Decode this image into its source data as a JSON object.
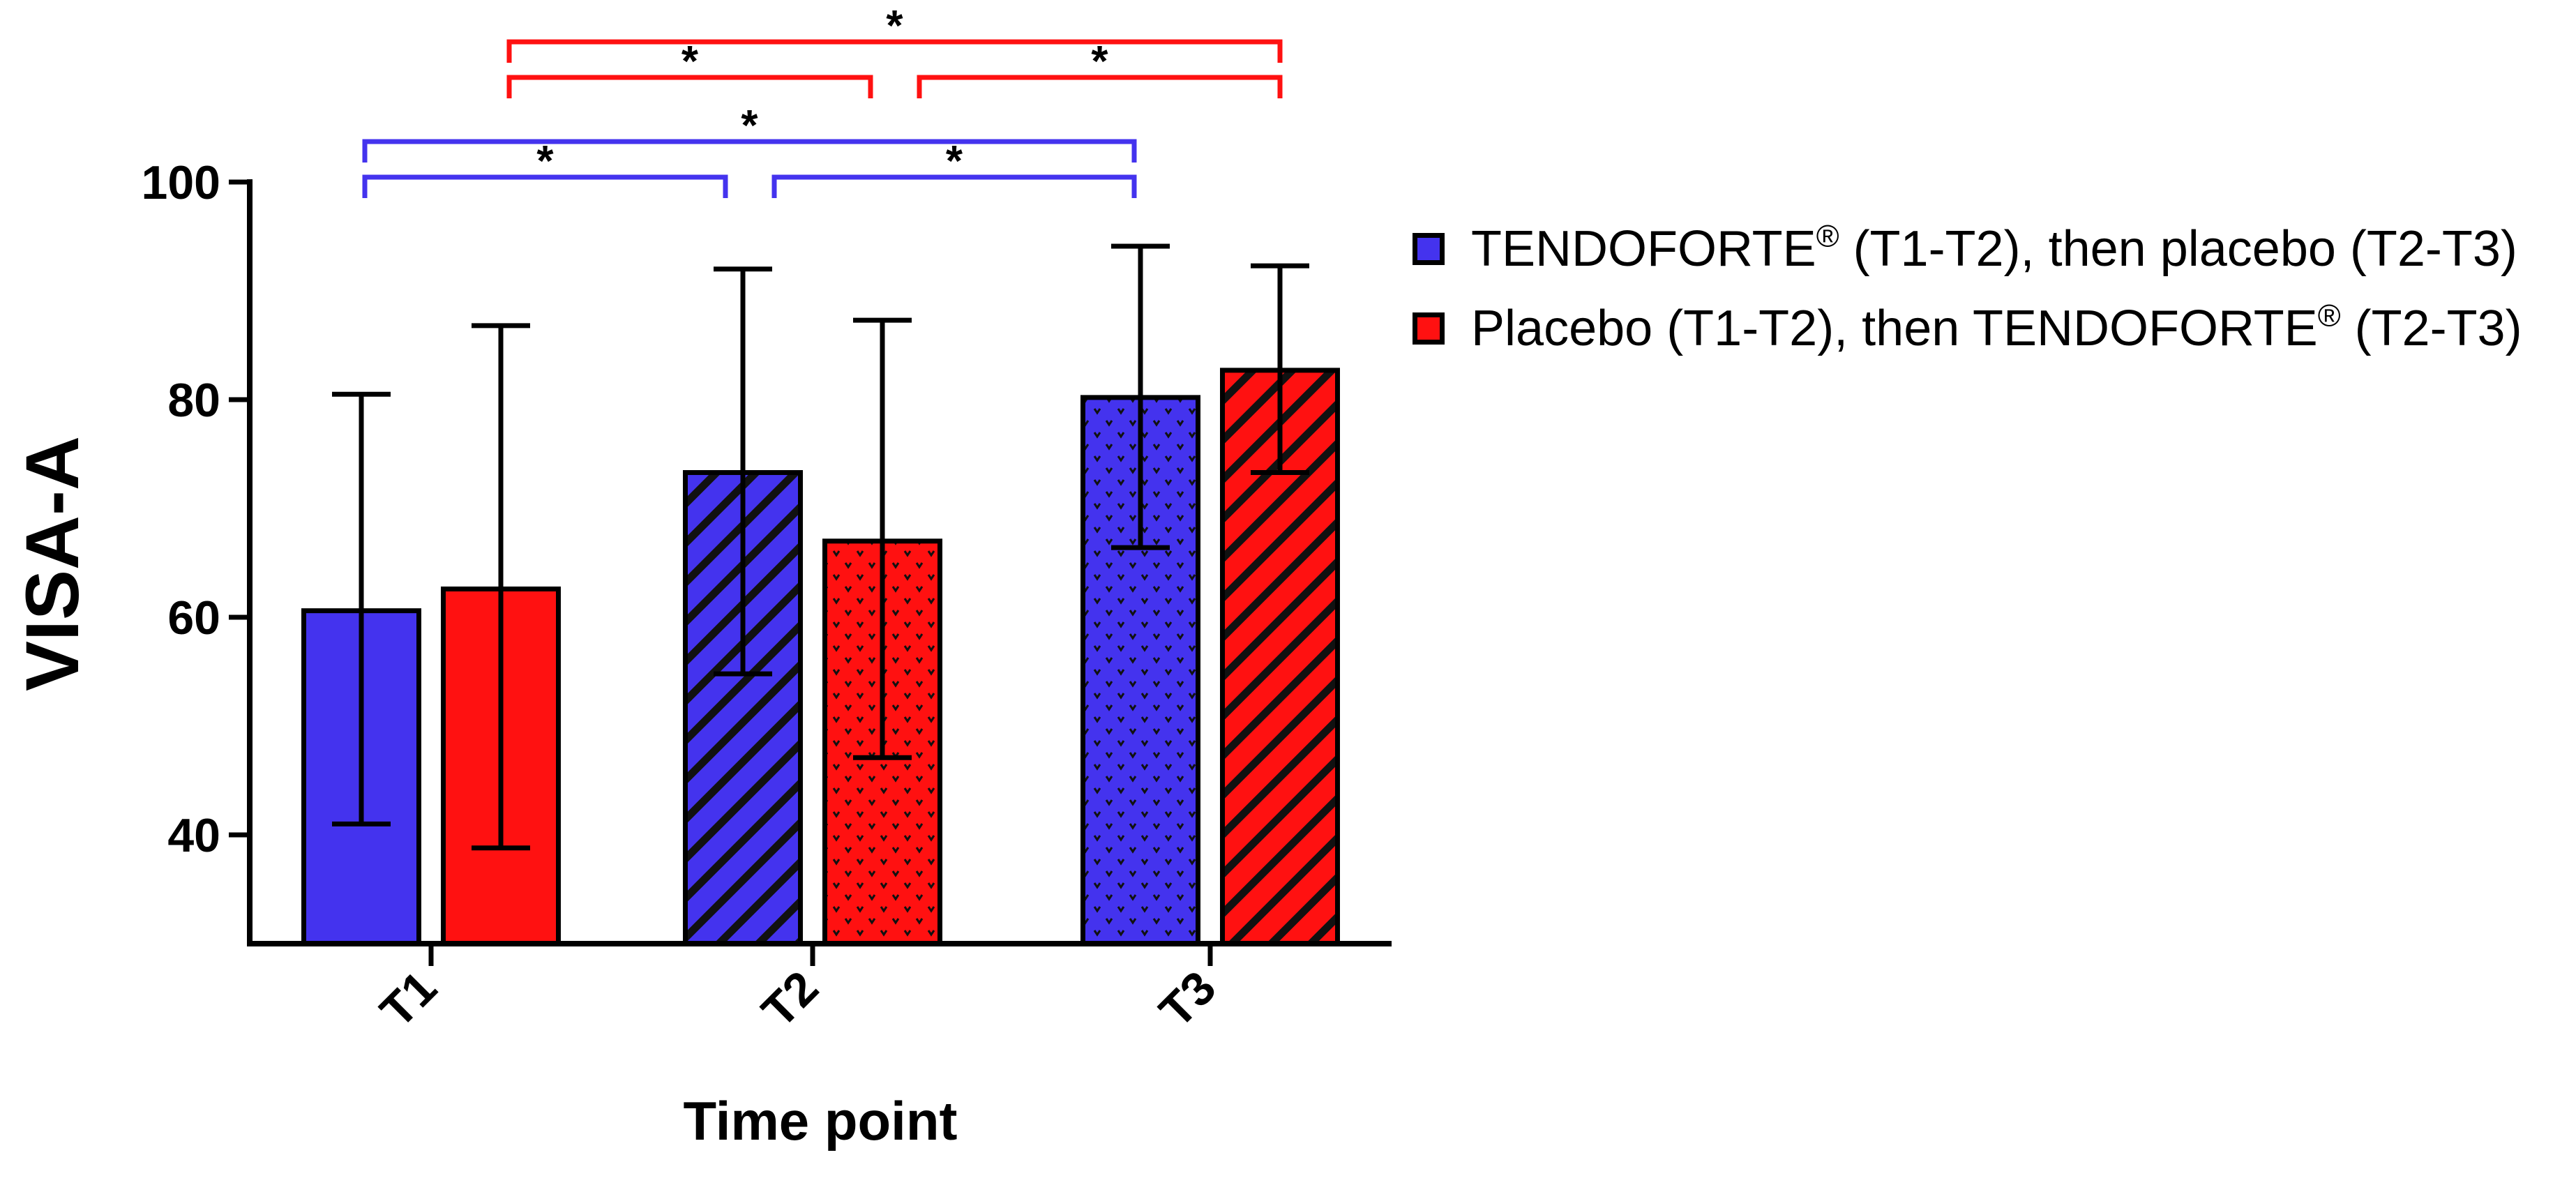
{
  "chart_data": {
    "type": "bar",
    "xlabel": "Time point",
    "ylabel": "VISA-A",
    "ylim": [
      30,
      100
    ],
    "yticks": [
      40,
      60,
      80,
      100
    ],
    "grid": false,
    "legend_position": "right",
    "categories": [
      "T1",
      "T2",
      "T3"
    ],
    "series": [
      {
        "name": "TENDOFORTE® (T1-T2), then placebo (T2-T3)",
        "legend_parts": [
          "TENDOFORTE",
          "®",
          " (T1-T2), then placebo (T2-T3)"
        ],
        "color": "#4433ee",
        "patterns": [
          "solid",
          "hatch",
          "dots"
        ],
        "values": [
          60.6,
          73.3,
          80.2
        ],
        "error_low": [
          41.0,
          54.8,
          66.4
        ],
        "error_high": [
          80.5,
          92.0,
          94.1
        ]
      },
      {
        "name": "Placebo (T1-T2), then TENDOFORTE® (T2-T3)",
        "legend_parts": [
          "Placebo (T1-T2), then TENDOFORTE",
          "®",
          " (T2-T3)"
        ],
        "color": "#ff1111",
        "patterns": [
          "solid",
          "dots",
          "hatch"
        ],
        "values": [
          62.6,
          67.0,
          82.7
        ],
        "error_low": [
          38.8,
          47.1,
          73.3
        ],
        "error_high": [
          86.8,
          87.3,
          92.3
        ]
      }
    ],
    "significance": [
      {
        "series": 0,
        "from": "T1",
        "to": "T2",
        "label": "*"
      },
      {
        "series": 0,
        "from": "T2",
        "to": "T3",
        "label": "*"
      },
      {
        "series": 0,
        "from": "T1",
        "to": "T3",
        "label": "*"
      },
      {
        "series": 1,
        "from": "T1",
        "to": "T2",
        "label": "*"
      },
      {
        "series": 1,
        "from": "T2",
        "to": "T3",
        "label": "*"
      },
      {
        "series": 1,
        "from": "T1",
        "to": "T3",
        "label": "*"
      }
    ]
  }
}
